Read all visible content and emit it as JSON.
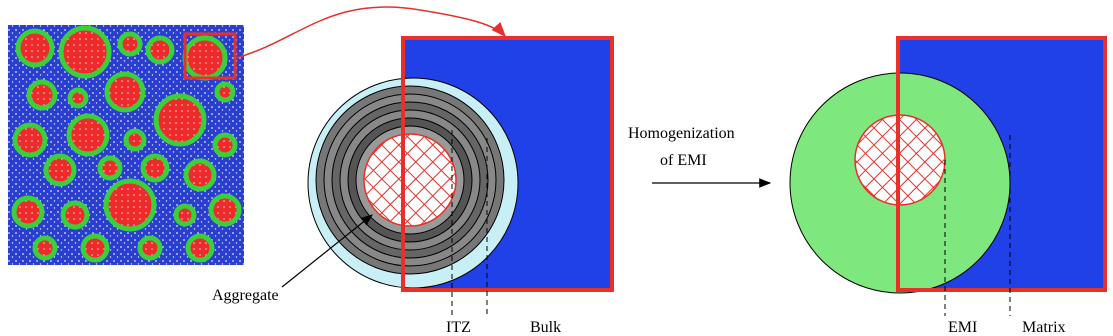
{
  "labels": {
    "aggregate": "Aggregate",
    "itz": "ITZ",
    "bulk": "Bulk",
    "homogenization_line1": "Homogenization",
    "homogenization_line2": "of EMI",
    "emi": "EMI",
    "matrix": "Matrix"
  }
}
